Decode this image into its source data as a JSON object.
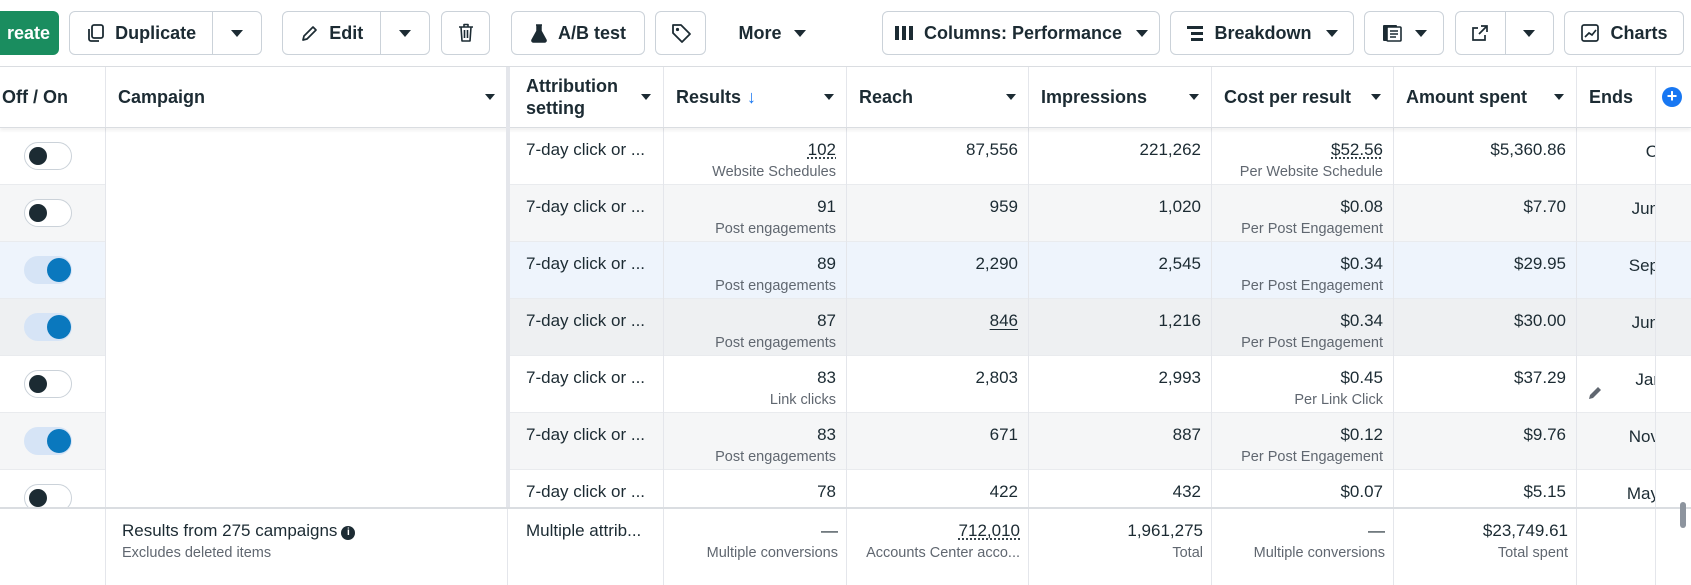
{
  "toolbar": {
    "create_label": "reate",
    "duplicate_label": "Duplicate",
    "edit_label": "Edit",
    "ab_test_label": "A/B test",
    "more_label": "More",
    "columns_label": "Columns: Performance",
    "breakdown_label": "Breakdown",
    "charts_label": "Charts"
  },
  "headers": {
    "off_on": "Off / On",
    "campaign": "Campaign",
    "attribution": "Attribution setting",
    "results": "Results",
    "results_sort": "↓",
    "reach": "Reach",
    "impressions": "Impressions",
    "cost_per_result": "Cost per result",
    "amount_spent": "Amount spent",
    "ends": "Ends"
  },
  "rows": [
    {
      "on": false,
      "attribution": "7-day click or ...",
      "results": "102",
      "results_type": "Website Schedules",
      "reach": "87,556",
      "impressions": "221,262",
      "cost": "$52.56",
      "cost_type": "Per Website Schedule",
      "spent": "$5,360.86",
      "ends": "O"
    },
    {
      "on": false,
      "attribution": "7-day click or ...",
      "results": "91",
      "results_type": "Post engagements",
      "reach": "959",
      "impressions": "1,020",
      "cost": "$0.08",
      "cost_type": "Per Post Engagement",
      "spent": "$7.70",
      "ends": "Jun"
    },
    {
      "on": true,
      "attribution": "7-day click or ...",
      "results": "89",
      "results_type": "Post engagements",
      "reach": "2,290",
      "impressions": "2,545",
      "cost": "$0.34",
      "cost_type": "Per Post Engagement",
      "spent": "$29.95",
      "ends": "Sep"
    },
    {
      "on": true,
      "attribution": "7-day click or ...",
      "results": "87",
      "results_type": "Post engagements",
      "reach": "846",
      "impressions": "1,216",
      "cost": "$0.34",
      "cost_type": "Per Post Engagement",
      "spent": "$30.00",
      "ends": "Jun"
    },
    {
      "on": false,
      "attribution": "7-day click or ...",
      "results": "83",
      "results_type": "Link clicks",
      "reach": "2,803",
      "impressions": "2,993",
      "cost": "$0.45",
      "cost_type": "Per Link Click",
      "spent": "$37.29",
      "ends": "Jar"
    },
    {
      "on": true,
      "attribution": "7-day click or ...",
      "results": "83",
      "results_type": "Post engagements",
      "reach": "671",
      "impressions": "887",
      "cost": "$0.12",
      "cost_type": "Per Post Engagement",
      "spent": "$9.76",
      "ends": "Nov"
    },
    {
      "on": false,
      "attribution": "7-day click or ...",
      "results": "78",
      "results_type": "",
      "reach": "422",
      "impressions": "432",
      "cost": "$0.07",
      "cost_type": "",
      "spent": "$5.15",
      "ends": "May"
    }
  ],
  "footer": {
    "results_from": "Results from 275 campaigns",
    "excludes": "Excludes deleted items",
    "attribution": "Multiple attrib...",
    "results": "—",
    "results_sub": "Multiple conversions",
    "reach": "712,010",
    "reach_sub": "Accounts Center acco...",
    "impressions": "1,961,275",
    "impressions_sub": "Total",
    "cost": "—",
    "cost_sub": "Multiple conversions",
    "spent": "$23,749.61",
    "spent_sub": "Total spent"
  },
  "colors": {
    "create_green": "#1a8d5f",
    "accent_blue": "#1877f2",
    "toggle_on": "#0a78be"
  }
}
